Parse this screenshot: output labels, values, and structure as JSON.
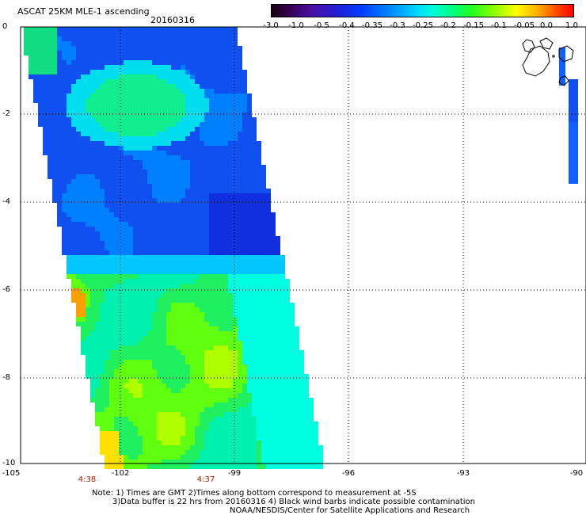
{
  "header": {
    "title": "ASCAT 25KM MLE-1 ascending",
    "date": "20160316"
  },
  "colorbar": {
    "labels": [
      "-3.0",
      "-1.0",
      "-0.5",
      "-0.4",
      "-0.35",
      "-0.3",
      "-0.25",
      "-0.2",
      "-0.15",
      "-0.1",
      "-0.05",
      "0.0",
      "1.0"
    ]
  },
  "axes": {
    "x_ticks": [
      "-105",
      "-102",
      "-99",
      "-96",
      "-93",
      "-90"
    ],
    "y_ticks": [
      "0",
      "-2",
      "-4",
      "-6",
      "-8",
      "-10"
    ]
  },
  "times": [
    "4:38",
    "4:37"
  ],
  "notes": {
    "line1": "Note: 1) Times are GMT 2)Times along bottom correspond to measurement at -5S",
    "line2": "3)Data buffer is 22 hrs from 20160316 4) Black wind barbs indicate possible contamination",
    "line3": "NOAA/NESDIS/Center for Satellite Applications and Research"
  }
}
